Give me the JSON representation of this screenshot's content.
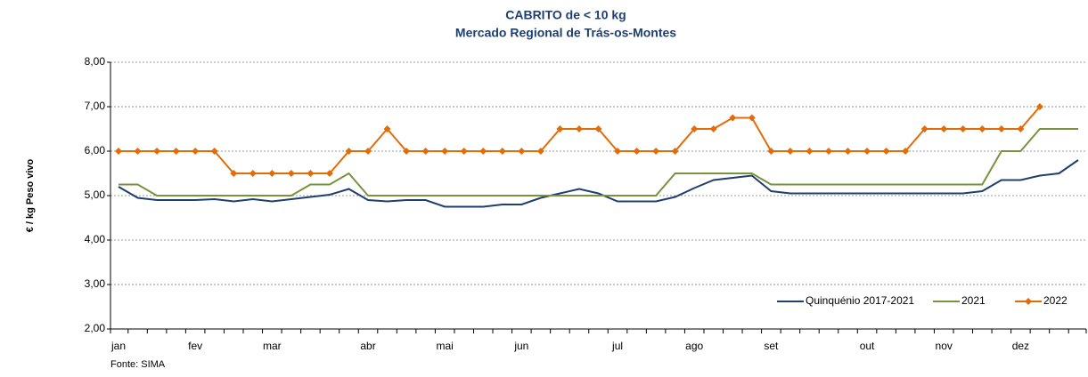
{
  "chart_data": {
    "type": "line",
    "title": "CABRITO de < 10 kg",
    "subtitle": "Mercado Regional de Trás-os-Montes",
    "y_label": "€ / kg Peso vivo",
    "source": "Fonte: SIMA",
    "categories": [
      "jan",
      null,
      null,
      null,
      "fev",
      null,
      null,
      null,
      "mar",
      null,
      null,
      null,
      null,
      "abr",
      null,
      null,
      null,
      "mai",
      null,
      null,
      null,
      "jun",
      null,
      null,
      null,
      null,
      "jul",
      null,
      null,
      null,
      "ago",
      null,
      null,
      null,
      "set",
      null,
      null,
      null,
      null,
      "out",
      null,
      null,
      null,
      "nov",
      null,
      null,
      null,
      "dez",
      null,
      null,
      null
    ],
    "ylim": [
      2,
      8
    ],
    "yticks": [
      {
        "value": 2,
        "label": "2,00"
      },
      {
        "value": 3,
        "label": "3,00"
      },
      {
        "value": 4,
        "label": "4,00"
      },
      {
        "value": 5,
        "label": "5,00"
      },
      {
        "value": 6,
        "label": "6,00"
      },
      {
        "value": 7,
        "label": "7,00"
      },
      {
        "value": 8,
        "label": "8,00"
      }
    ],
    "grid": true,
    "legend": "bottom-right",
    "series": [
      {
        "name": "Quinquénio 2017-2021",
        "color": "#1f3f6e",
        "marker": false,
        "values": [
          5.2,
          4.95,
          4.9,
          4.9,
          4.9,
          4.92,
          4.87,
          4.92,
          4.87,
          4.92,
          4.97,
          5.02,
          5.15,
          4.9,
          4.87,
          4.9,
          4.9,
          4.75,
          4.75,
          4.75,
          4.8,
          4.8,
          4.95,
          5.05,
          5.15,
          5.05,
          4.87,
          4.87,
          4.87,
          4.97,
          5.17,
          5.35,
          5.4,
          5.45,
          5.1,
          5.05,
          5.05,
          5.05,
          5.05,
          5.05,
          5.05,
          5.05,
          5.05,
          5.05,
          5.05,
          5.1,
          5.35,
          5.35,
          5.45,
          5.5,
          5.8
        ]
      },
      {
        "name": "2021",
        "color": "#77933c",
        "marker": false,
        "values": [
          5.25,
          5.25,
          5.0,
          5.0,
          5.0,
          5.0,
          5.0,
          5.0,
          5.0,
          5.0,
          5.25,
          5.25,
          5.5,
          5.0,
          5.0,
          5.0,
          5.0,
          5.0,
          5.0,
          5.0,
          5.0,
          5.0,
          5.0,
          5.0,
          5.0,
          5.0,
          5.0,
          5.0,
          5.0,
          5.5,
          5.5,
          5.5,
          5.5,
          5.5,
          5.25,
          5.25,
          5.25,
          5.25,
          5.25,
          5.25,
          5.25,
          5.25,
          5.25,
          5.25,
          5.25,
          5.25,
          6.0,
          6.0,
          6.5,
          6.5,
          6.5
        ]
      },
      {
        "name": "2022",
        "color": "#e36c09",
        "marker": true,
        "values": [
          6.0,
          6.0,
          6.0,
          6.0,
          6.0,
          6.0,
          5.5,
          5.5,
          5.5,
          5.5,
          5.5,
          5.5,
          6.0,
          6.0,
          6.5,
          6.0,
          6.0,
          6.0,
          6.0,
          6.0,
          6.0,
          6.0,
          6.0,
          6.5,
          6.5,
          6.5,
          6.0,
          6.0,
          6.0,
          6.0,
          6.5,
          6.5,
          6.75,
          6.75,
          6.0,
          6.0,
          6.0,
          6.0,
          6.0,
          6.0,
          6.0,
          6.0,
          6.5,
          6.5,
          6.5,
          6.5,
          6.5,
          6.5,
          7.0,
          null,
          null
        ]
      }
    ]
  }
}
